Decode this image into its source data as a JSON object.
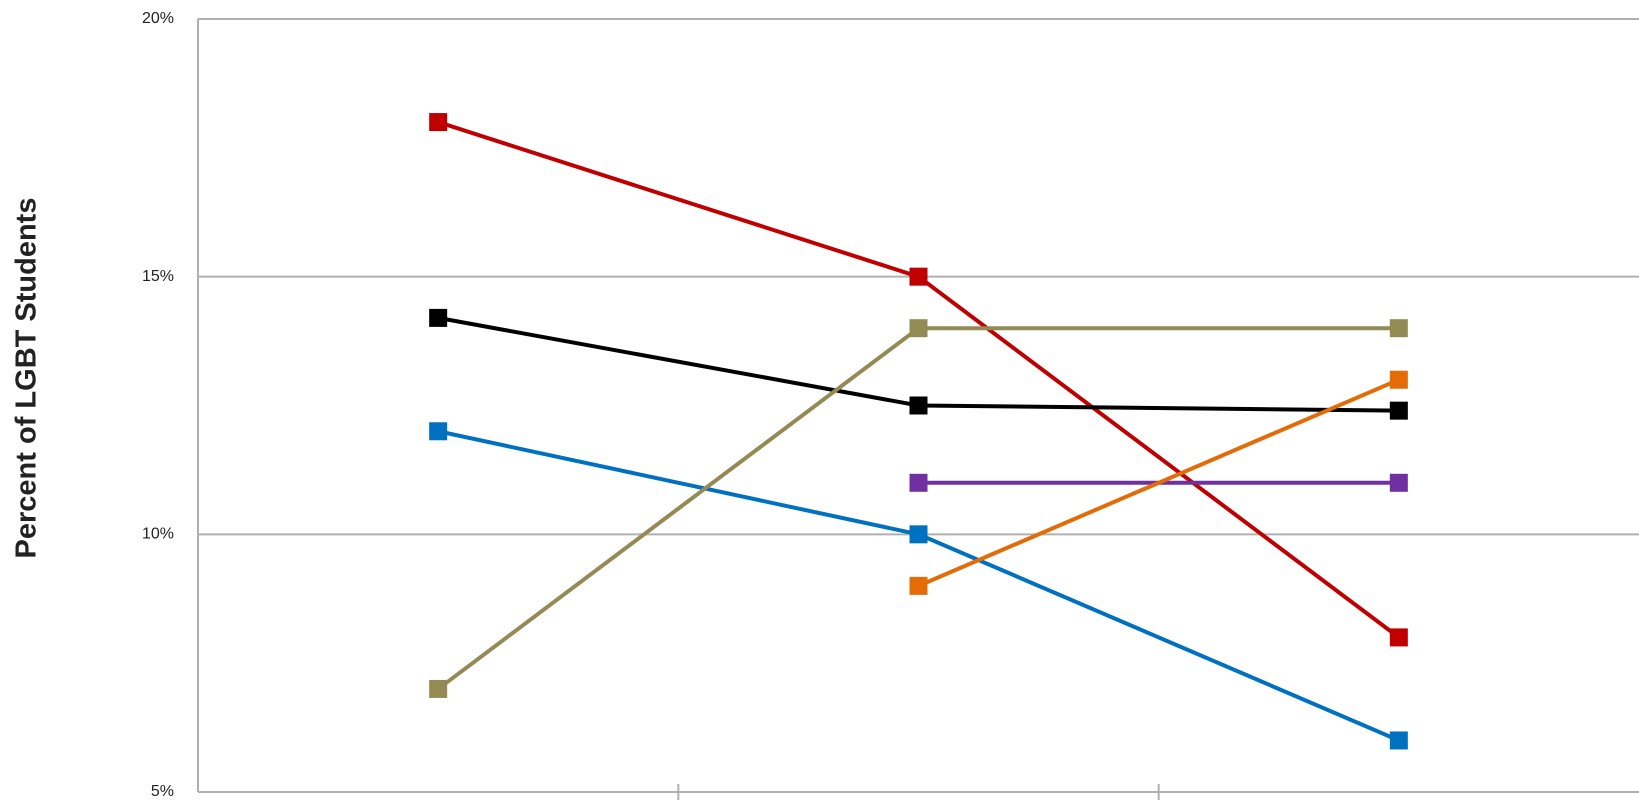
{
  "chart_data": {
    "type": "line",
    "y_label": "Percent of LGBT Students",
    "categories": [
      null,
      null,
      null
    ],
    "ylim": [
      5,
      20
    ],
    "yticks": [
      {
        "value": 5,
        "label": "5%"
      },
      {
        "value": 10,
        "label": "10%"
      },
      {
        "value": 15,
        "label": "15%"
      },
      {
        "value": 20,
        "label": "20%"
      }
    ],
    "grid": true,
    "series": [
      {
        "color": "#c00000",
        "values": [
          18,
          15,
          8
        ]
      },
      {
        "color": "#000000",
        "values": [
          14.2,
          12.5,
          12.4
        ]
      },
      {
        "color": "#0070c0",
        "values": [
          12,
          10,
          6
        ]
      },
      {
        "color": "#948a54",
        "values": [
          7,
          14,
          14
        ]
      },
      {
        "color": "#7030a0",
        "values": [
          null,
          11,
          11
        ]
      },
      {
        "color": "#e36c09",
        "values": [
          null,
          9,
          13
        ]
      }
    ]
  }
}
